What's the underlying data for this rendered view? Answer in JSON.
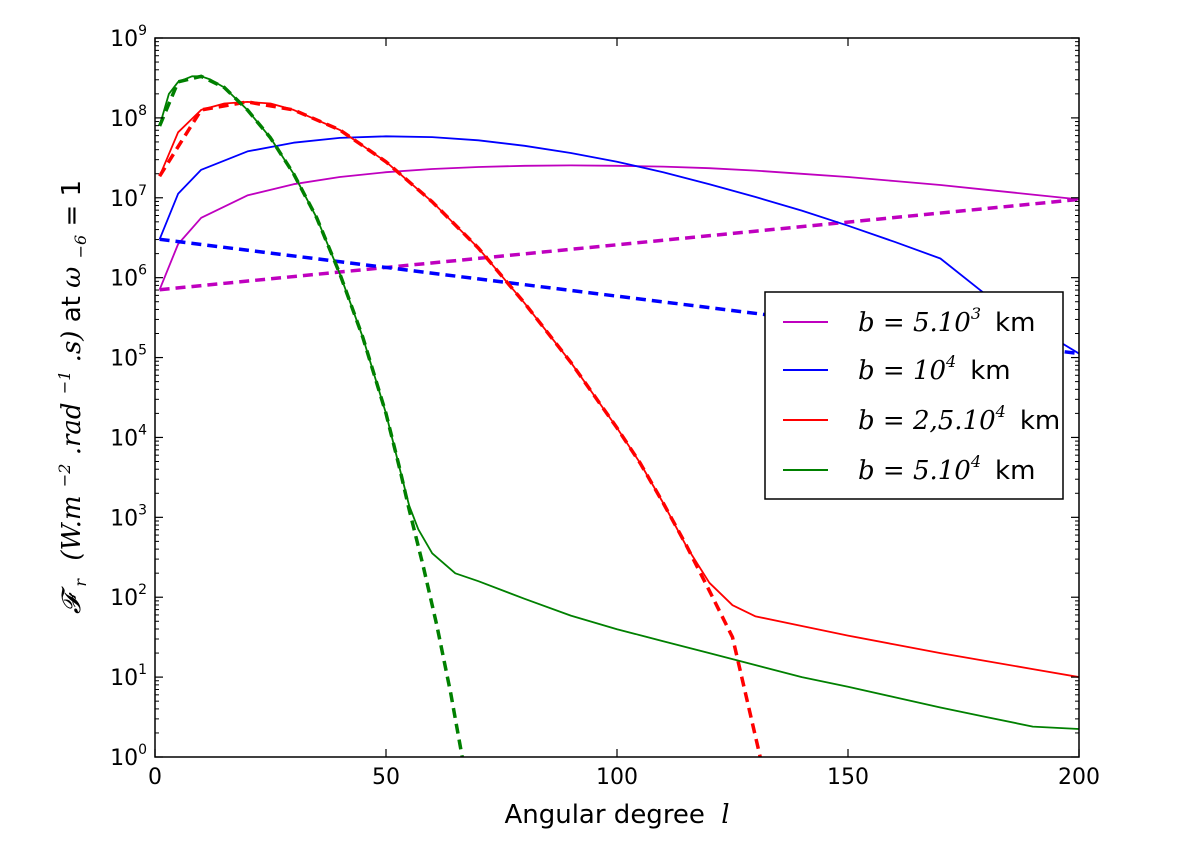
{
  "chart_data": {
    "type": "line",
    "title": "",
    "xlabel": "Angular degree",
    "xlabel_var": "l",
    "ylabel": {
      "symbol": "𝓕",
      "symbol_sub": "r",
      "units_open": "(W.m",
      "units_exp1": "−2",
      "units_mid": " .rad",
      "units_exp2": "−1",
      "units_close": " .s)",
      "at_text": " at ",
      "omega": "ω",
      "omega_sub": "−6",
      "eq_text": " = 1"
    },
    "y_scale": "log",
    "xlim": [
      0,
      200
    ],
    "ylim_exp": [
      0,
      9
    ],
    "x_ticks": [
      "0",
      "50",
      "100",
      "150",
      "200"
    ],
    "x_tick_values": [
      0,
      50,
      100,
      150,
      200
    ],
    "y_tick_base": "10",
    "y_tick_exponents": [
      "0",
      "1",
      "2",
      "3",
      "4",
      "5",
      "6",
      "7",
      "8",
      "9"
    ],
    "legend_position": "center-right",
    "series": [
      {
        "name": "b = 5.10^3 km",
        "label_base": "b = 5.10",
        "label_exp": "3",
        "label_unit": "km",
        "color": "#bf00bf",
        "x": [
          1,
          5,
          10,
          20,
          30,
          40,
          50,
          60,
          70,
          80,
          90,
          100,
          110,
          120,
          130,
          140,
          150,
          160,
          170,
          180,
          190,
          200
        ],
        "log10_y": [
          5.85,
          6.42,
          6.75,
          7.03,
          7.17,
          7.26,
          7.32,
          7.36,
          7.385,
          7.4,
          7.405,
          7.4,
          7.39,
          7.37,
          7.34,
          7.3,
          7.26,
          7.21,
          7.16,
          7.1,
          7.04,
          6.98
        ],
        "dashed_overlay": [
          {
            "x": [
              1,
              200
            ],
            "log10_y": [
              5.85,
              6.98
            ]
          }
        ]
      },
      {
        "name": "b = 10^4 km",
        "label_base": "b = 10",
        "label_exp": "4",
        "label_unit": "km",
        "color": "#0000ff",
        "x": [
          1,
          5,
          10,
          20,
          30,
          40,
          50,
          60,
          70,
          80,
          90,
          100,
          110,
          120,
          130,
          140,
          150,
          160,
          170,
          180,
          190,
          200
        ],
        "log10_y": [
          6.48,
          7.05,
          7.35,
          7.58,
          7.69,
          7.75,
          7.77,
          7.76,
          7.72,
          7.65,
          7.56,
          7.45,
          7.32,
          7.17,
          7.01,
          6.84,
          6.65,
          6.45,
          6.24,
          5.78,
          5.4,
          5.05
        ],
        "dashed_overlay": [
          {
            "x": [
              1,
              200
            ],
            "log10_y": [
              6.48,
              5.05
            ]
          }
        ]
      },
      {
        "name": "b = 2,5.10^4 km",
        "label_base": "b = 2,5.10",
        "label_exp": "4",
        "label_unit": "km",
        "color": "#ff0000",
        "x": [
          1,
          5,
          10,
          15,
          20,
          25,
          30,
          40,
          50,
          60,
          70,
          80,
          90,
          100,
          105,
          110,
          115,
          120,
          125,
          130,
          140,
          150,
          160,
          170,
          180,
          190,
          200
        ],
        "log10_y": [
          7.27,
          7.82,
          8.1,
          8.18,
          8.2,
          8.18,
          8.1,
          7.85,
          7.45,
          6.95,
          6.37,
          5.68,
          4.94,
          4.12,
          3.68,
          3.18,
          2.64,
          2.18,
          1.9,
          1.76,
          1.64,
          1.52,
          1.41,
          1.3,
          1.2,
          1.1,
          1.0
        ],
        "dashed_overlay": [
          {
            "x": [
              1,
              10,
              20,
              30,
              40,
              50,
              60,
              70,
              80,
              90,
              100,
              105,
              110,
              115,
              120,
              125,
              131
            ],
            "log10_y": [
              7.27,
              8.1,
              8.2,
              8.1,
              7.85,
              7.45,
              6.95,
              6.37,
              5.68,
              4.94,
              4.12,
              3.68,
              3.18,
              2.65,
              2.08,
              1.5,
              0.0
            ]
          }
        ]
      },
      {
        "name": "b = 5.10^4 km",
        "label_base": "b = 5.10",
        "label_exp": "4",
        "label_unit": "km",
        "color": "#008000",
        "x": [
          1,
          3,
          5,
          8,
          10,
          12,
          15,
          20,
          25,
          30,
          35,
          40,
          45,
          50,
          53,
          55,
          57,
          60,
          65,
          70,
          80,
          90,
          100,
          110,
          120,
          130,
          140,
          150,
          160,
          170,
          180,
          190,
          200
        ],
        "log10_y": [
          7.9,
          8.3,
          8.45,
          8.52,
          8.52,
          8.48,
          8.38,
          8.1,
          7.75,
          7.3,
          6.75,
          6.05,
          5.25,
          4.3,
          3.6,
          3.15,
          2.85,
          2.55,
          2.3,
          2.2,
          1.98,
          1.77,
          1.6,
          1.45,
          1.3,
          1.15,
          1.0,
          0.88,
          0.75,
          0.62,
          0.5,
          0.38,
          0.35
        ],
        "dashed_overlay": [
          {
            "x": [
              1,
              5,
              10,
              15,
              20,
              25,
              30,
              35,
              40,
              45,
              50,
              53,
              55,
              58,
              61,
              64,
              66.5
            ],
            "log10_y": [
              7.9,
              8.45,
              8.52,
              8.38,
              8.1,
              7.75,
              7.3,
              6.75,
              6.05,
              5.25,
              4.3,
              3.6,
              3.1,
              2.4,
              1.65,
              0.8,
              0.0
            ]
          }
        ]
      }
    ]
  }
}
